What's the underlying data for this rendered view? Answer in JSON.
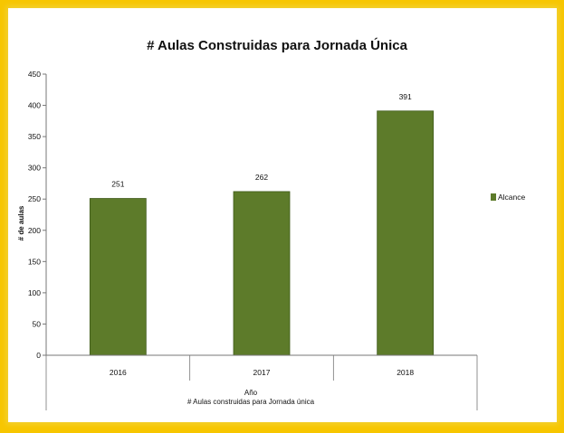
{
  "colors": {
    "page_background": "#f7c600",
    "bar_fill": "#5d7b2a",
    "bar_stroke": "#3f5a1a",
    "axis": "#777777"
  },
  "chart_data": {
    "type": "bar",
    "title": "# Aulas Construidas para Jornada Única",
    "xlabel": "Año",
    "x_subtitle": "# Aulas construidas para Jornada única",
    "ylabel": "# de aulas",
    "categories": [
      "2016",
      "2017",
      "2018"
    ],
    "series": [
      {
        "name": "Alcance",
        "values": [
          251,
          262,
          391
        ],
        "color": "#5d7b2a"
      }
    ],
    "ylim": [
      0,
      450
    ],
    "yticks": [
      0,
      50,
      100,
      150,
      200,
      250,
      300,
      350,
      400,
      450
    ],
    "grid": false,
    "legend_position": "right"
  }
}
